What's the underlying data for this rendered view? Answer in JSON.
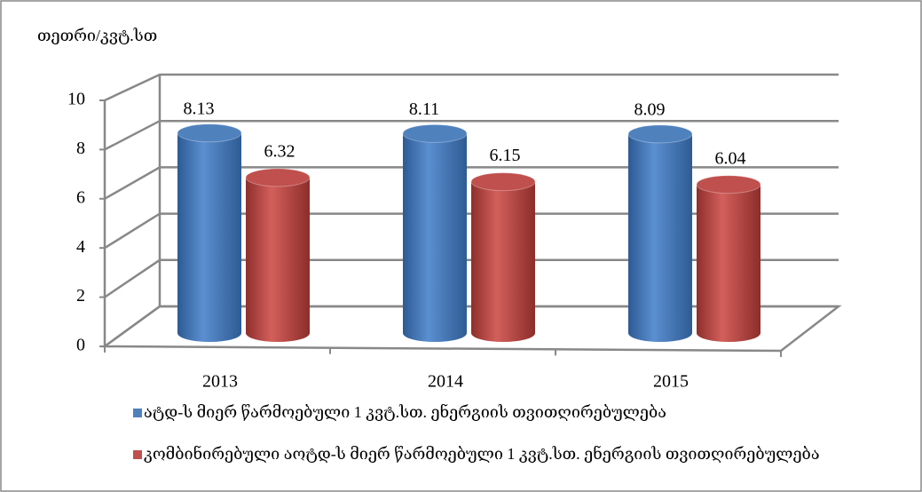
{
  "chart_data": {
    "type": "bar3d",
    "y_label": "თეთრი/კვტ.სთ",
    "categories": [
      "2013",
      "2014",
      "2015"
    ],
    "series": [
      {
        "name": "ატდ-ს მიერ წარმოებული 1 კვტ.სთ. ენერგიის თვითღირებულება",
        "color": "#4f81bd",
        "values": [
          8.13,
          8.11,
          8.09
        ]
      },
      {
        "name": "კომბინირებული აოტდ-ს  მიერ წარმოებული 1 კვტ.სთ. ენერგიის თვითღირებულება",
        "color": "#c0504d",
        "values": [
          6.32,
          6.15,
          6.04
        ]
      }
    ],
    "ylim": [
      0,
      10
    ],
    "yticks": [
      0,
      2,
      4,
      6,
      8,
      10
    ],
    "grid": true
  }
}
